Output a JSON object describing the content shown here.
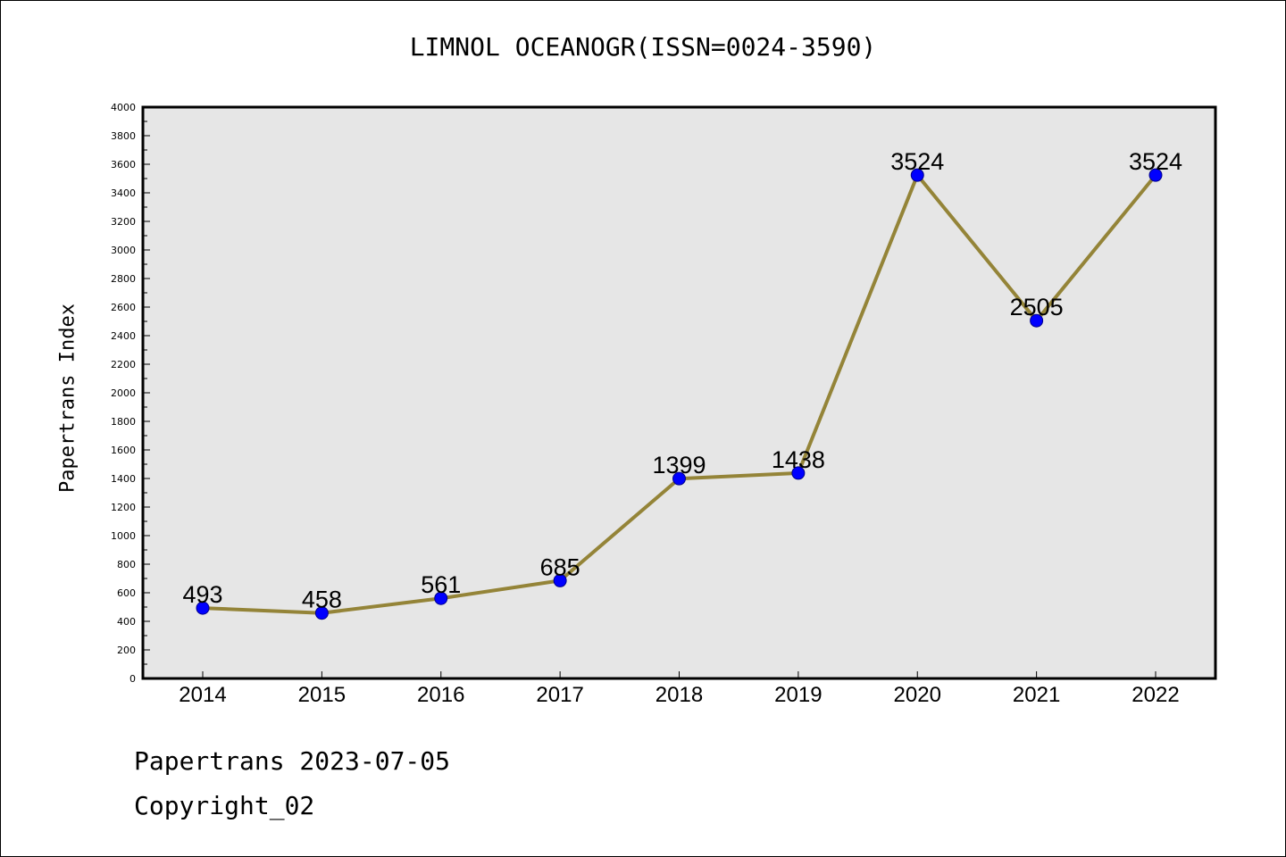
{
  "chart_data": {
    "type": "line",
    "title": "LIMNOL OCEANOGR(ISSN=0024-3590)",
    "xlabel": "",
    "ylabel": "Papertrans Index",
    "categories": [
      "2014",
      "2015",
      "2016",
      "2017",
      "2018",
      "2019",
      "2020",
      "2021",
      "2022"
    ],
    "series": [
      {
        "values": [
          493,
          458,
          561,
          685,
          1399,
          1438,
          3524,
          2505,
          3524
        ]
      }
    ],
    "data_labels": [
      "493",
      "458",
      "561",
      "685",
      "1399",
      "1438",
      "3524",
      "2505",
      "3524"
    ],
    "ylim": [
      0,
      4000
    ],
    "yticks": [
      "0",
      "200",
      "400",
      "600",
      "800",
      "1000",
      "1200",
      "1400",
      "1600",
      "1800",
      "2000",
      "2200",
      "2400",
      "2600",
      "2800",
      "3000",
      "3200",
      "3400",
      "3600",
      "3800",
      "4000"
    ],
    "grid": false,
    "legend": "none",
    "line_color": "#948438",
    "marker_color": "#0000ff",
    "plot_background": "#e6e6e6"
  },
  "footer": {
    "date_text": "Papertrans 2023-07-05",
    "copyright_text": "Copyright_02"
  }
}
